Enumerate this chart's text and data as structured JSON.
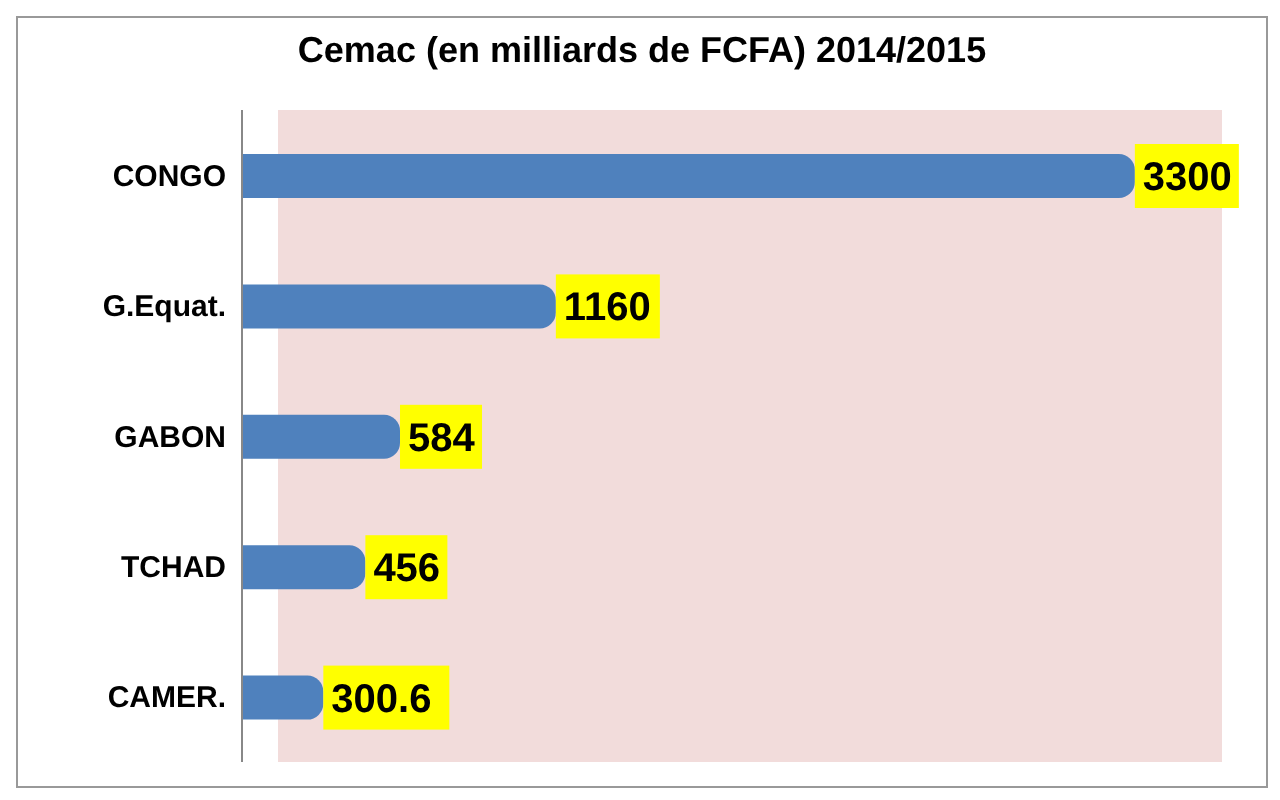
{
  "chart_data": {
    "type": "bar",
    "orientation": "horizontal",
    "title": "Cemac (en milliards de FCFA) 2014/2015",
    "categories": [
      "CONGO",
      "G.Equat.",
      "GABON",
      "TCHAD",
      "CAMER."
    ],
    "values": [
      3300,
      1160,
      584,
      456,
      300.6
    ],
    "color": "#4f81bd",
    "data_labels": true
  }
}
